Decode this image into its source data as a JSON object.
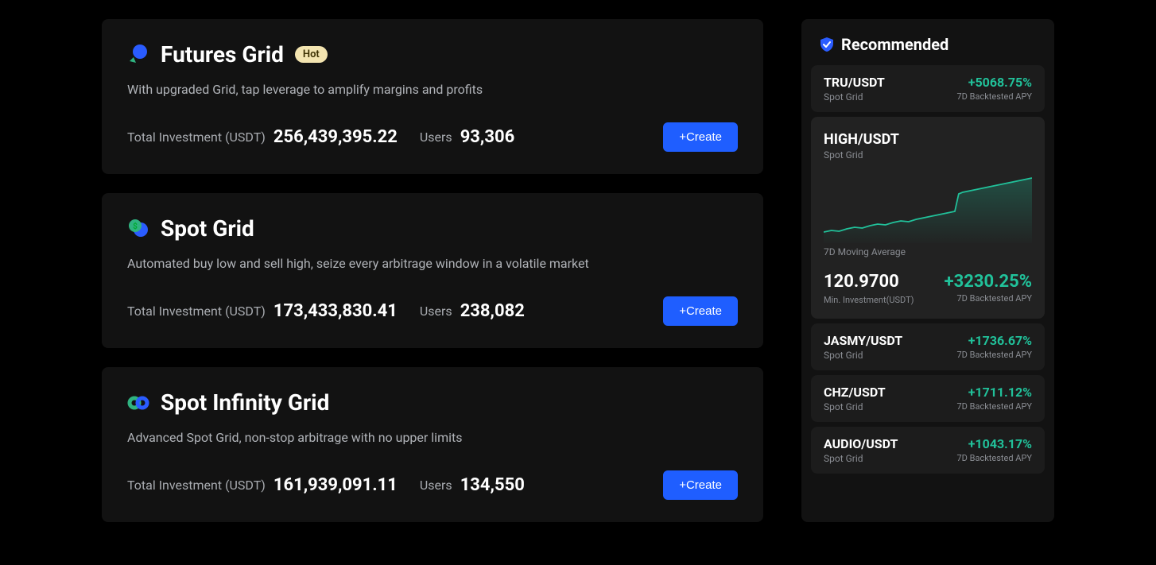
{
  "colors": {
    "accent_blue": "#1f5eff",
    "green": "#21c19a",
    "badge_bg": "#f3e4b0",
    "card_bg": "#121212",
    "rec_bg": "#1c1c1c",
    "rec_featured_bg": "#222222",
    "text_muted": "#a8abb0"
  },
  "strategies": [
    {
      "icon": "futures",
      "title": "Futures Grid",
      "badge": "Hot",
      "desc": "With upgraded Grid, tap leverage to amplify margins and profits",
      "inv_label": "Total Investment (USDT)",
      "inv_value": "256,439,395.22",
      "users_label": "Users",
      "users_value": "93,306",
      "button": "+Create"
    },
    {
      "icon": "spot",
      "title": "Spot Grid",
      "badge": "",
      "desc": "Automated buy low and sell high, seize every arbitrage window in a volatile market",
      "inv_label": "Total Investment (USDT)",
      "inv_value": "173,433,830.41",
      "users_label": "Users",
      "users_value": "238,082",
      "button": "+Create"
    },
    {
      "icon": "infinity",
      "title": "Spot Infinity Grid",
      "badge": "",
      "desc": "Advanced Spot Grid, non-stop arbitrage with no upper limits",
      "inv_label": "Total Investment (USDT)",
      "inv_value": "161,939,091.11",
      "users_label": "Users",
      "users_value": "134,550",
      "button": "+Create"
    }
  ],
  "recommended": {
    "title": "Recommended",
    "apy_label": "7D Backtested APY",
    "type_label": "Spot Grid",
    "items_top": [
      {
        "pair": "TRU/USDT",
        "percent": "+5068.75%"
      }
    ],
    "featured": {
      "pair": "HIGH/USDT",
      "ma_label": "7D Moving Average",
      "min_value": "120.9700",
      "min_label": "Min. Investment(USDT)",
      "percent": "+3230.25%",
      "chart": {
        "points": [
          0,
          78,
          10,
          76,
          20,
          77,
          30,
          74,
          40,
          72,
          50,
          73,
          60,
          70,
          70,
          68,
          80,
          69,
          90,
          66,
          100,
          64,
          110,
          65,
          120,
          62,
          130,
          60,
          140,
          58,
          150,
          56,
          160,
          54,
          170,
          52,
          175,
          30,
          180,
          28,
          190,
          26,
          200,
          24,
          210,
          22,
          220,
          20,
          230,
          18,
          240,
          16,
          250,
          14,
          260,
          12,
          270,
          10
        ],
        "stroke": "#21c19a",
        "fill_top": "rgba(33,193,154,0.25)",
        "fill_bottom": "rgba(33,193,154,0.02)"
      }
    },
    "items_bottom": [
      {
        "pair": "JASMY/USDT",
        "percent": "+1736.67%"
      },
      {
        "pair": "CHZ/USDT",
        "percent": "+1711.12%"
      },
      {
        "pair": "AUDIO/USDT",
        "percent": "+1043.17%"
      }
    ]
  }
}
